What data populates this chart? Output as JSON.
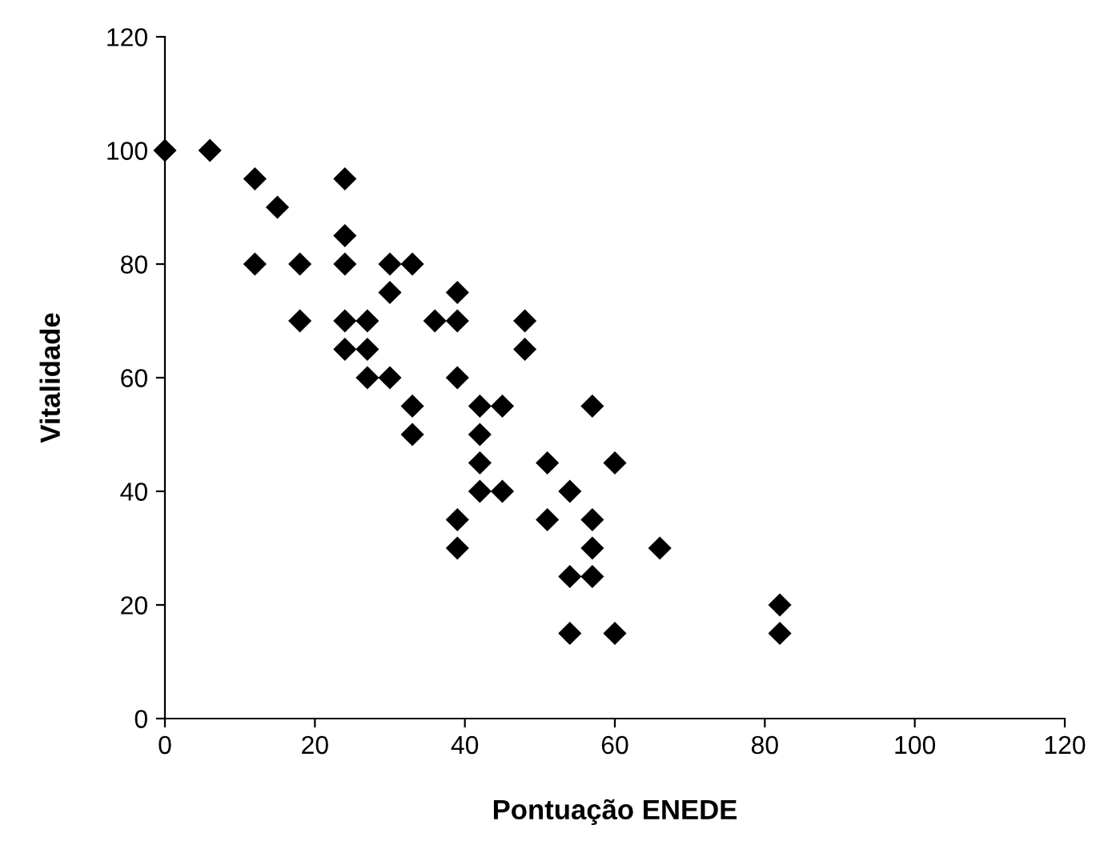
{
  "chart_data": {
    "type": "scatter",
    "xlabel": "Pontuação ENEDE",
    "ylabel": "Vitalidade",
    "x": [
      0,
      6,
      12,
      15,
      12,
      18,
      18,
      24,
      24,
      24,
      24,
      24,
      30,
      33,
      30,
      27,
      27,
      27,
      30,
      33,
      33,
      36,
      39,
      39,
      39,
      39,
      39,
      42,
      42,
      42,
      42,
      45,
      45,
      48,
      48,
      51,
      51,
      54,
      54,
      54,
      57,
      57,
      57,
      57,
      60,
      60,
      66,
      82,
      82
    ],
    "values": [
      100,
      100,
      95,
      90,
      80,
      80,
      70,
      95,
      85,
      80,
      70,
      65,
      80,
      80,
      75,
      70,
      65,
      60,
      60,
      55,
      50,
      70,
      75,
      70,
      60,
      35,
      30,
      55,
      50,
      45,
      40,
      55,
      40,
      70,
      65,
      45,
      35,
      40,
      25,
      15,
      55,
      35,
      30,
      25,
      45,
      15,
      30,
      20,
      15
    ],
    "color": "#000000",
    "marker": "diamond",
    "xlim": [
      0,
      120
    ],
    "ylim": [
      0,
      120
    ],
    "xticks": [
      0,
      20,
      40,
      60,
      80,
      100,
      120
    ],
    "yticks": [
      0,
      20,
      40,
      60,
      80,
      100,
      120
    ],
    "grid": false,
    "legend": false
  }
}
